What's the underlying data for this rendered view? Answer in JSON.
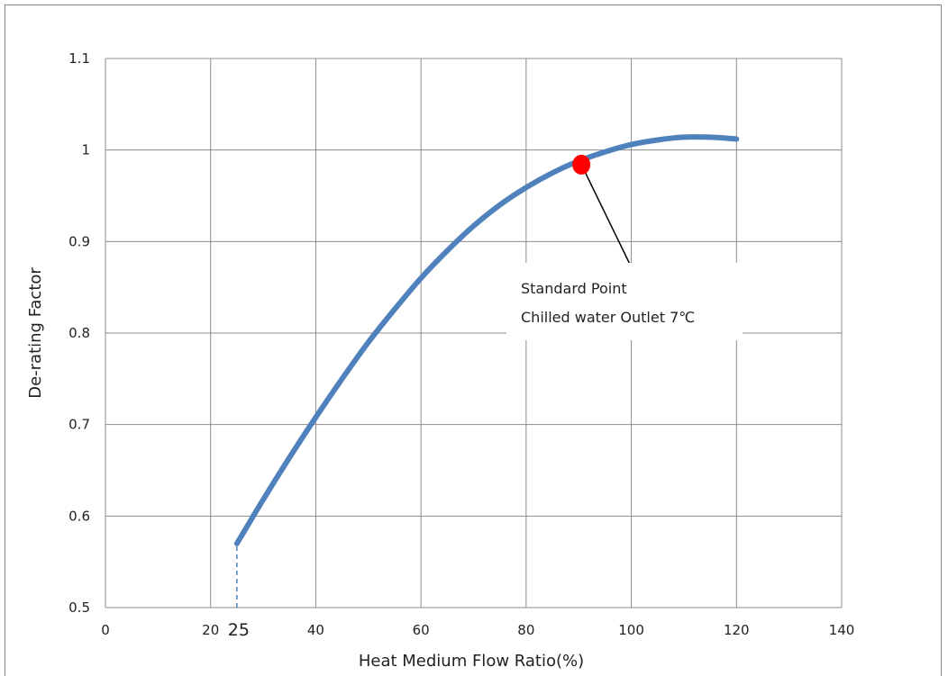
{
  "chart_data": {
    "type": "line",
    "title": "",
    "xlabel": "Heat  Medium  Flow  Ratio(%)",
    "ylabel": "De-rating  Factor",
    "xlim": [
      0,
      140
    ],
    "ylim": [
      0.5,
      1.1
    ],
    "x_ticks": [
      "0",
      "20",
      "40",
      "60",
      "80",
      "100",
      "120",
      "140"
    ],
    "y_ticks": [
      "0.5",
      "0.6",
      "0.7",
      "0.8",
      "0.9",
      "1",
      "1.1"
    ],
    "extra_x_tick": {
      "value": 25,
      "label": "25"
    },
    "grid": true,
    "series": [
      {
        "color": "#4f81bd",
        "x": [
          25,
          30,
          35,
          40,
          45,
          50,
          55,
          60,
          65,
          70,
          75,
          80,
          85,
          90,
          95,
          100,
          105,
          110,
          115,
          120
        ],
        "y": [
          0.57,
          0.618,
          0.664,
          0.708,
          0.75,
          0.79,
          0.826,
          0.86,
          0.89,
          0.917,
          0.94,
          0.959,
          0.975,
          0.988,
          0.998,
          1.006,
          1.011,
          1.014,
          1.014,
          1.012
        ]
      }
    ],
    "dashed_drop": {
      "x": 25,
      "y_from": 0.5,
      "y_to": 0.57,
      "color": "#4f81bd"
    },
    "marker": {
      "x": 90.5,
      "y": 0.984,
      "color": "#ff0000"
    },
    "annotation": {
      "lines": [
        "Standard Point",
        "Chilled water Outlet 7℃"
      ],
      "leader_to": {
        "x": 100,
        "y": 0.87
      }
    }
  }
}
